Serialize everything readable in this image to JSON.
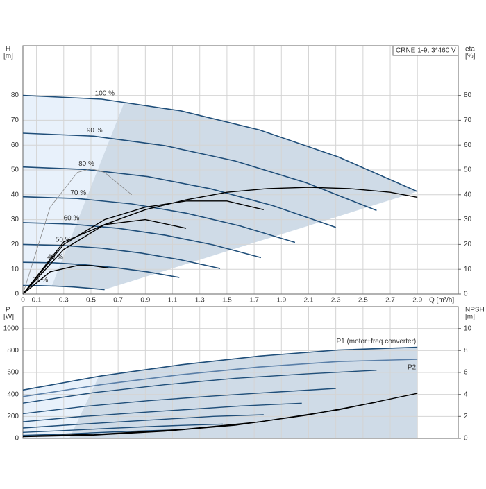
{
  "chart_data": [
    {
      "type": "line",
      "title": "CRNE 1-9, 3*460 V",
      "ylabel": "H",
      "yunit": "[m]",
      "y2label": "eta",
      "y2unit": "[%]",
      "xlabel": "Q [m³/h]",
      "xlim": [
        0,
        3.2
      ],
      "ylim": [
        0,
        100
      ],
      "y2lim": [
        0,
        100
      ],
      "xticks": [
        0,
        0.1,
        0.3,
        0.5,
        0.7,
        0.9,
        1.1,
        1.3,
        1.5,
        1.7,
        1.9,
        2.1,
        2.3,
        2.5,
        2.7,
        2.9
      ],
      "yticks": [
        0,
        10,
        20,
        30,
        40,
        50,
        60,
        70,
        80
      ],
      "y2ticks": [
        0,
        10,
        20,
        30,
        40,
        50,
        60,
        70,
        80
      ],
      "grid": true,
      "label_position": "start",
      "series": [
        {
          "name": "100 %",
          "color": "#1f4e79",
          "x": [
            0,
            0.58,
            1.16,
            1.74,
            2.32,
            2.9
          ],
          "values": [
            80,
            78.5,
            73.8,
            66.1,
            55.2,
            41.3
          ]
        },
        {
          "name": "90 %",
          "color": "#1f4e79",
          "x": [
            0,
            0.52,
            1.04,
            1.56,
            2.08,
            2.6
          ],
          "values": [
            64.8,
            63.6,
            59.8,
            53.6,
            44.9,
            33.7
          ]
        },
        {
          "name": "80 %",
          "color": "#1f4e79",
          "x": [
            0,
            0.46,
            0.92,
            1.38,
            1.84,
            2.3
          ],
          "values": [
            51.2,
            50.2,
            47.3,
            42.4,
            35.6,
            26.9
          ]
        },
        {
          "name": "70 %",
          "color": "#1f4e79",
          "x": [
            0,
            0.4,
            0.8,
            1.2,
            1.6,
            2.0
          ],
          "values": [
            39.2,
            38.5,
            36.3,
            32.6,
            27.4,
            20.8
          ]
        },
        {
          "name": "60 %",
          "color": "#1f4e79",
          "x": [
            0,
            0.35,
            0.7,
            1.05,
            1.4,
            1.75
          ],
          "values": [
            28.8,
            28.2,
            26.5,
            23.7,
            19.8,
            14.7
          ]
        },
        {
          "name": "50 %",
          "color": "#1f4e79",
          "x": [
            0,
            0.29,
            0.58,
            0.87,
            1.16,
            1.45
          ],
          "values": [
            20,
            19.6,
            18.5,
            16.5,
            13.8,
            10.3
          ]
        },
        {
          "name": "40 %",
          "color": "#1f4e79",
          "x": [
            0,
            0.23,
            0.46,
            0.69,
            0.92,
            1.15
          ],
          "values": [
            12.8,
            12.6,
            11.8,
            10.6,
            8.9,
            6.7
          ]
        },
        {
          "name": "21 %",
          "color": "#1f4e79",
          "x": [
            0,
            0.12,
            0.24,
            0.36,
            0.48,
            0.6
          ],
          "values": [
            3.5,
            3.4,
            3.2,
            2.9,
            2.4,
            1.8
          ]
        },
        {
          "color": "#000000",
          "axis": "y2",
          "x": [
            0,
            0.3,
            0.6,
            0.9,
            1.2,
            1.5,
            1.8,
            2.1,
            2.4,
            2.7,
            2.9
          ],
          "values": [
            0,
            18,
            28,
            34,
            38,
            41,
            42.5,
            43,
            42.5,
            41,
            39
          ]
        },
        {
          "color": "#000000",
          "axis": "y2",
          "x": [
            0,
            0.3,
            0.6,
            0.9,
            1.2,
            1.5,
            1.77
          ],
          "values": [
            0,
            20,
            30,
            35,
            37.5,
            37.5,
            34
          ]
        },
        {
          "color": "#000000",
          "axis": "y2",
          "x": [
            0,
            0.3,
            0.6,
            0.9,
            1.2
          ],
          "values": [
            0,
            21,
            28,
            30,
            26.5
          ]
        },
        {
          "color": "#000000",
          "axis": "y2",
          "x": [
            0,
            0.2,
            0.4,
            0.5,
            0.63
          ],
          "values": [
            0,
            9,
            11.5,
            11.5,
            10.5
          ]
        },
        {
          "color": "#888888",
          "axis": "y2",
          "x": [
            0,
            0.2,
            0.4,
            0.5,
            0.6,
            0.8
          ],
          "values": [
            0,
            35,
            49,
            50.5,
            49,
            40
          ]
        }
      ]
    },
    {
      "type": "line",
      "ylabel": "P",
      "yunit": "[W]",
      "y2label": "NPSH",
      "y2unit": "[m]",
      "xlim": [
        0,
        3.2
      ],
      "ylim": [
        0,
        1200
      ],
      "y2lim": [
        0,
        12
      ],
      "yticks": [
        0,
        200,
        400,
        600,
        800,
        1000
      ],
      "y2ticks": [
        0,
        2,
        4,
        6,
        8,
        10
      ],
      "grid": true,
      "label_position": "end",
      "series": [
        {
          "name": "P1 (motor+freq.converter)",
          "color": "#1f4e79",
          "x": [
            0,
            0.58,
            1.16,
            1.74,
            2.32,
            2.9
          ],
          "values": [
            440,
            570,
            670,
            750,
            805,
            830
          ]
        },
        {
          "name": "P2",
          "color": "#5a7fa8",
          "x": [
            0,
            0.58,
            1.16,
            1.74,
            2.32,
            2.9
          ],
          "values": [
            380,
            490,
            580,
            650,
            700,
            720
          ]
        },
        {
          "color": "#1f4e79",
          "x": [
            0,
            0.52,
            1.04,
            1.56,
            2.08,
            2.6
          ],
          "values": [
            321,
            416,
            488,
            547,
            587,
            620
          ]
        },
        {
          "color": "#1f4e79",
          "x": [
            0,
            0.46,
            0.92,
            1.38,
            1.84,
            2.3
          ],
          "values": [
            225,
            292,
            343,
            384,
            420,
            455
          ]
        },
        {
          "color": "#1f4e79",
          "x": [
            0,
            0.4,
            0.8,
            1.2,
            1.6,
            2.05
          ],
          "values": [
            151,
            196,
            230,
            262,
            295,
            320
          ]
        },
        {
          "color": "#1f4e79",
          "x": [
            0,
            0.35,
            0.7,
            1.05,
            1.4,
            1.77
          ],
          "values": [
            95,
            123,
            150,
            175,
            200,
            215
          ]
        },
        {
          "color": "#1f4e79",
          "x": [
            0,
            0.29,
            0.58,
            0.87,
            1.16,
            1.47
          ],
          "values": [
            55,
            71,
            88,
            104,
            118,
            130
          ]
        },
        {
          "color": "#1f4e79",
          "x": [
            0,
            0.23,
            0.46,
            0.69,
            0.92,
            1.19
          ],
          "values": [
            28,
            36,
            48,
            60,
            70,
            80
          ]
        },
        {
          "color": "#000000",
          "axis": "y2",
          "x": [
            0,
            0.58,
            1.16,
            1.74,
            2.32,
            2.9
          ],
          "values": [
            0.2,
            0.4,
            0.8,
            1.5,
            2.6,
            4.1
          ]
        },
        {
          "color": "#000000",
          "axis": "y2",
          "x": [
            0,
            0.52,
            1.04,
            1.56,
            2.08,
            2.6
          ],
          "values": [
            0.15,
            0.3,
            0.65,
            1.2,
            2.1,
            3.3
          ]
        }
      ]
    }
  ]
}
